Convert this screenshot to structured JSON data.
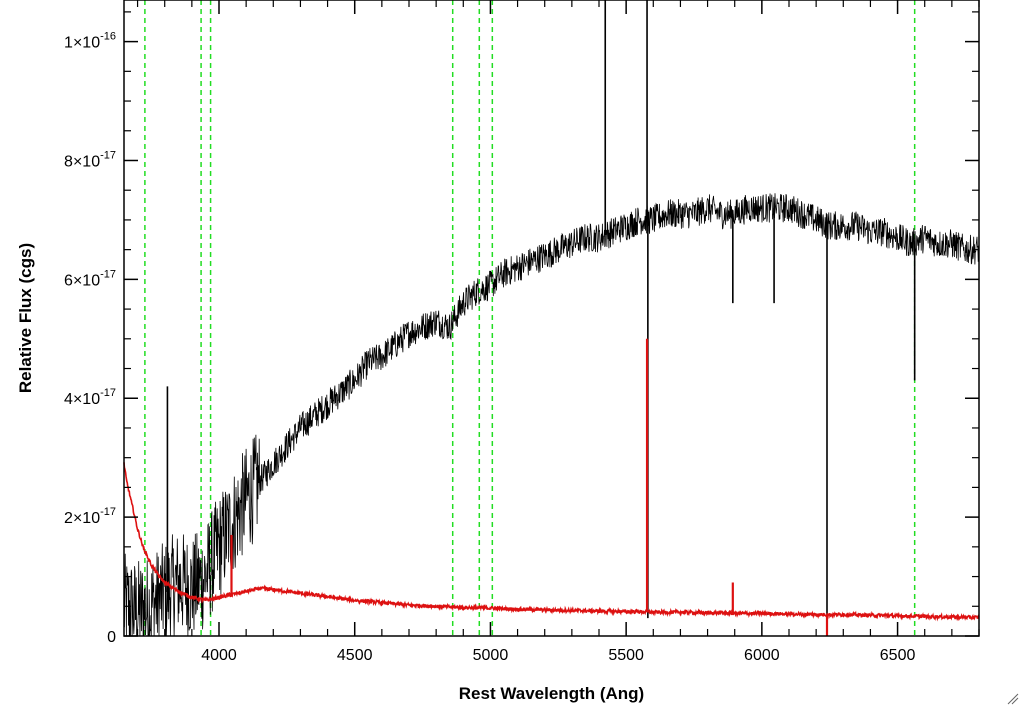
{
  "chart_data": {
    "type": "line",
    "xlabel": "Rest Wavelength (Ang)",
    "ylabel": "Relative Flux (cgs)",
    "xlim": [
      3650,
      6800
    ],
    "ylim": [
      0,
      1.07e-16
    ],
    "x_ticks": [
      {
        "value": 4000,
        "label": "4000"
      },
      {
        "value": 4500,
        "label": "4500"
      },
      {
        "value": 5000,
        "label": "5000"
      },
      {
        "value": 5500,
        "label": "5500"
      },
      {
        "value": 6000,
        "label": "6000"
      },
      {
        "value": 6500,
        "label": "6500"
      }
    ],
    "y_ticks": [
      {
        "value": 0,
        "mantissa": "0",
        "exponent": ""
      },
      {
        "value": 2e-17,
        "mantissa": "2×10",
        "exponent": "-17"
      },
      {
        "value": 4e-17,
        "mantissa": "4×10",
        "exponent": "-17"
      },
      {
        "value": 6e-17,
        "mantissa": "6×10",
        "exponent": "-17"
      },
      {
        "value": 8e-17,
        "mantissa": "8×10",
        "exponent": "-17"
      },
      {
        "value": 1e-16,
        "mantissa": "1×10",
        "exponent": "-16"
      }
    ],
    "reference_lines": {
      "color": "#22dd22",
      "style": "dashed",
      "x": [
        3727,
        3934,
        3969,
        4861,
        4959,
        5007,
        6563
      ]
    },
    "series": [
      {
        "color": "#000000",
        "x": [
          3650,
          3700,
          3750,
          3800,
          3850,
          3900,
          3950,
          4000,
          4050,
          4100,
          4150,
          4200,
          4250,
          4300,
          4350,
          4400,
          4450,
          4500,
          4550,
          4600,
          4650,
          4700,
          4750,
          4800,
          4850,
          4900,
          4950,
          5000,
          5050,
          5100,
          5150,
          5200,
          5250,
          5300,
          5350,
          5400,
          5450,
          5500,
          5550,
          5600,
          5650,
          5700,
          5750,
          5800,
          5850,
          5900,
          5950,
          6000,
          6050,
          6100,
          6150,
          6200,
          6250,
          6300,
          6350,
          6400,
          6450,
          6500,
          6550,
          6600,
          6650,
          6700,
          6750,
          6800
        ],
        "y": [
          5e-18,
          4e-18,
          5e-18,
          7e-18,
          9e-18,
          8e-18,
          1e-17,
          1.5e-17,
          1.9e-17,
          2.3e-17,
          2.6e-17,
          2.9e-17,
          3.2e-17,
          3.5e-17,
          3.7e-17,
          3.9e-17,
          4.1e-17,
          4.3e-17,
          4.6e-17,
          4.7e-17,
          4.9e-17,
          5.1e-17,
          5.2e-17,
          5.3e-17,
          5.2e-17,
          5.6e-17,
          5.8e-17,
          5.9e-17,
          6.1e-17,
          6.2e-17,
          6.3e-17,
          6.4e-17,
          6.5e-17,
          6.6e-17,
          6.7e-17,
          6.7e-17,
          6.8e-17,
          6.9e-17,
          7e-17,
          7e-17,
          7.1e-17,
          7.1e-17,
          7.1e-17,
          7.2e-17,
          7.1e-17,
          7.1e-17,
          7.2e-17,
          7.2e-17,
          7.2e-17,
          7.2e-17,
          7.1e-17,
          7e-17,
          6.9e-17,
          6.9e-17,
          6.9e-17,
          6.8e-17,
          6.8e-17,
          6.7e-17,
          6.6e-17,
          6.7e-17,
          6.6e-17,
          6.6e-17,
          6.5e-17,
          6.5e-17
        ],
        "spikes": [
          {
            "x": 3810,
            "y": 4.2e-17
          },
          {
            "x": 5423,
            "y": 1.07e-16
          },
          {
            "x": 5577,
            "y": 1.07e-16
          },
          {
            "x": 5580,
            "y": 3e-18
          },
          {
            "x": 5893,
            "y": 5.6e-17
          },
          {
            "x": 6045,
            "y": 5.6e-17
          },
          {
            "x": 6240,
            "y": 0
          },
          {
            "x": 6563,
            "y": 4.3e-17
          }
        ]
      },
      {
        "color": "#dd1111",
        "x": [
          3650,
          3660,
          3680,
          3700,
          3720,
          3750,
          3780,
          3800,
          3850,
          3900,
          3950,
          4000,
          4050,
          4100,
          4150,
          4200,
          4300,
          4400,
          4500,
          4600,
          4700,
          4800,
          4900,
          5000,
          5100,
          5200,
          5300,
          5400,
          5500,
          5550,
          5600,
          5700,
          5800,
          5850,
          5900,
          5950,
          6000,
          6100,
          6200,
          6300,
          6400,
          6500,
          6600,
          6700,
          6800
        ],
        "y": [
          2.9e-17,
          2.6e-17,
          2.2e-17,
          1.8e-17,
          1.5e-17,
          1.2e-17,
          1e-17,
          9e-18,
          7.5e-18,
          6.5e-18,
          6e-18,
          6.5e-18,
          7e-18,
          7.5e-18,
          8e-18,
          7.8e-18,
          7.2e-18,
          6.6e-18,
          6e-18,
          5.6e-18,
          5.2e-18,
          5e-18,
          4.8e-18,
          4.7e-18,
          4.5e-18,
          4.4e-18,
          4.3e-18,
          4.2e-18,
          4.1e-18,
          4.1e-18,
          4e-18,
          4e-18,
          3.9e-18,
          3.9e-18,
          3.8e-18,
          3.8e-18,
          3.8e-18,
          3.7e-18,
          3.6e-18,
          3.6e-18,
          3.5e-18,
          3.4e-18,
          3.3e-18,
          3.2e-18,
          3.1e-18
        ],
        "spikes": [
          {
            "x": 4046,
            "y": 1.7e-17
          },
          {
            "x": 5577,
            "y": 5e-17
          },
          {
            "x": 5893,
            "y": 9e-18
          },
          {
            "x": 6240,
            "y": 0
          }
        ]
      }
    ]
  }
}
